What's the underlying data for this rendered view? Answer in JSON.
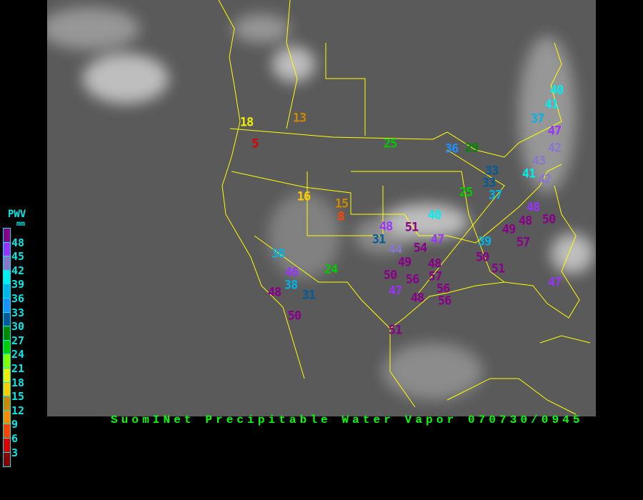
{
  "title": "SuomINet Precipitable Water Vapor 070730/0945",
  "legend": {
    "title": "PWV",
    "unit": "mm",
    "labels": [
      "48",
      "45",
      "42",
      "39",
      "36",
      "33",
      "30",
      "27",
      "24",
      "21",
      "18",
      "15",
      "12",
      "9",
      "6",
      "3"
    ],
    "colors": [
      "#880088",
      "#9933ff",
      "#8877cc",
      "#00eeee",
      "#00b4e8",
      "#1e90ff",
      "#005c99",
      "#008800",
      "#00cc00",
      "#88ff00",
      "#eeee00",
      "#ffcc00",
      "#cc8800",
      "#ff8800",
      "#ff4400",
      "#dd0000",
      "#880000"
    ]
  },
  "map": {
    "background": "satellite-infrared-grayscale",
    "boundary_color": "#ffff00",
    "stations": [
      {
        "value": "18",
        "color": "#eeee00"
      },
      {
        "value": "5",
        "color": "#dd0000"
      },
      {
        "value": "13",
        "color": "#cc8800"
      },
      {
        "value": "16",
        "color": "#ffcc00"
      },
      {
        "value": "15",
        "color": "#cc8800"
      },
      {
        "value": "8",
        "color": "#ff4400"
      },
      {
        "value": "25",
        "color": "#00cc00"
      },
      {
        "value": "36",
        "color": "#1e90ff"
      },
      {
        "value": "29",
        "color": "#008800"
      },
      {
        "value": "25",
        "color": "#00cc00"
      },
      {
        "value": "33",
        "color": "#005c99"
      },
      {
        "value": "33",
        "color": "#005c99"
      },
      {
        "value": "37",
        "color": "#00b4e8"
      },
      {
        "value": "40",
        "color": "#00eeee"
      },
      {
        "value": "41",
        "color": "#00eeee"
      },
      {
        "value": "37",
        "color": "#00b4e8"
      },
      {
        "value": "47",
        "color": "#9933ff"
      },
      {
        "value": "42",
        "color": "#8877cc"
      },
      {
        "value": "43",
        "color": "#8877cc"
      },
      {
        "value": "41",
        "color": "#00eeee"
      },
      {
        "value": "42",
        "color": "#8877cc"
      },
      {
        "value": "48",
        "color": "#9933ff"
      },
      {
        "value": "48",
        "color": "#880088"
      },
      {
        "value": "50",
        "color": "#880088"
      },
      {
        "value": "49",
        "color": "#880088"
      },
      {
        "value": "57",
        "color": "#880088"
      },
      {
        "value": "40",
        "color": "#00eeee"
      },
      {
        "value": "48",
        "color": "#9933ff"
      },
      {
        "value": "51",
        "color": "#880088"
      },
      {
        "value": "31",
        "color": "#005c99"
      },
      {
        "value": "44",
        "color": "#8877cc"
      },
      {
        "value": "47",
        "color": "#9933ff"
      },
      {
        "value": "54",
        "color": "#880088"
      },
      {
        "value": "49",
        "color": "#880088"
      },
      {
        "value": "39",
        "color": "#00b4e8"
      },
      {
        "value": "50",
        "color": "#880088"
      },
      {
        "value": "51",
        "color": "#880088"
      },
      {
        "value": "48",
        "color": "#880088"
      },
      {
        "value": "50",
        "color": "#880088"
      },
      {
        "value": "56",
        "color": "#880088"
      },
      {
        "value": "57",
        "color": "#880088"
      },
      {
        "value": "47",
        "color": "#9933ff"
      },
      {
        "value": "48",
        "color": "#880088"
      },
      {
        "value": "56",
        "color": "#880088"
      },
      {
        "value": "56",
        "color": "#880088"
      },
      {
        "value": "47",
        "color": "#9933ff"
      },
      {
        "value": "38",
        "color": "#00b4e8"
      },
      {
        "value": "46",
        "color": "#9933ff"
      },
      {
        "value": "38",
        "color": "#00b4e8"
      },
      {
        "value": "31",
        "color": "#005c99"
      },
      {
        "value": "48",
        "color": "#880088"
      },
      {
        "value": "24",
        "color": "#00cc00"
      },
      {
        "value": "50",
        "color": "#880088"
      },
      {
        "value": "51",
        "color": "#880088"
      }
    ]
  }
}
